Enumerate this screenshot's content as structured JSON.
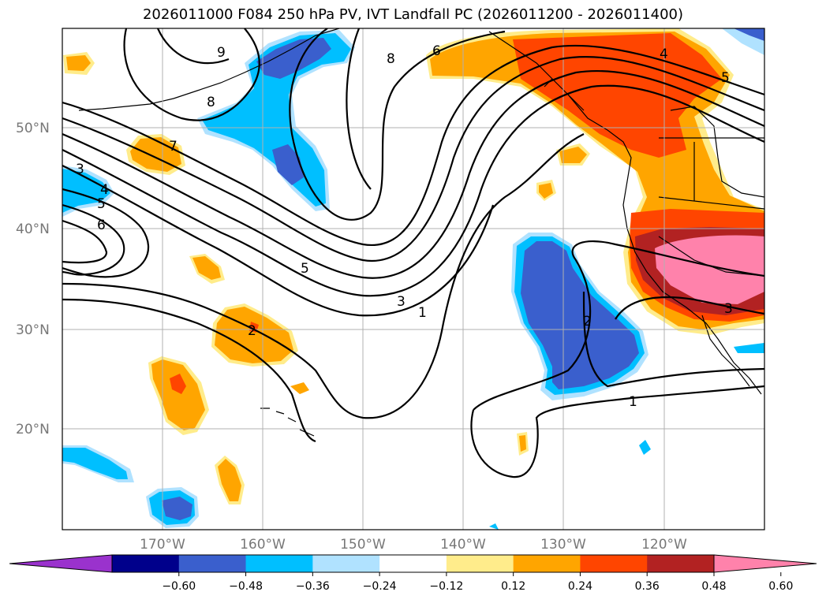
{
  "title": "2026011000 F084 250 hPa PV, IVT Landfall PC (2026011200 - 2026011400)",
  "lat_labels": [
    "50°N",
    "40°N",
    "30°N",
    "20°N"
  ],
  "lon_labels": [
    "170°W",
    "160°W",
    "150°W",
    "140°W",
    "130°W",
    "120°W"
  ],
  "contour_labels": [
    "9",
    "8",
    "8",
    "6",
    "4",
    "5",
    "7",
    "3",
    "4",
    "5",
    "6",
    "5",
    "3",
    "1",
    "2",
    "2",
    "3",
    "1"
  ],
  "colorbar": {
    "ticks": [
      "−0.60",
      "−0.48",
      "−0.36",
      "−0.24",
      "−0.12",
      "0.12",
      "0.24",
      "0.36",
      "0.48",
      "0.60"
    ],
    "colors": [
      "#9a32cd",
      "#00008b",
      "#3a5fcd",
      "#00bfff",
      "#b0e2ff",
      "#ffffff",
      "#ffec8b",
      "#ffa500",
      "#ff4500",
      "#b22222",
      "#ff82ab"
    ]
  }
}
